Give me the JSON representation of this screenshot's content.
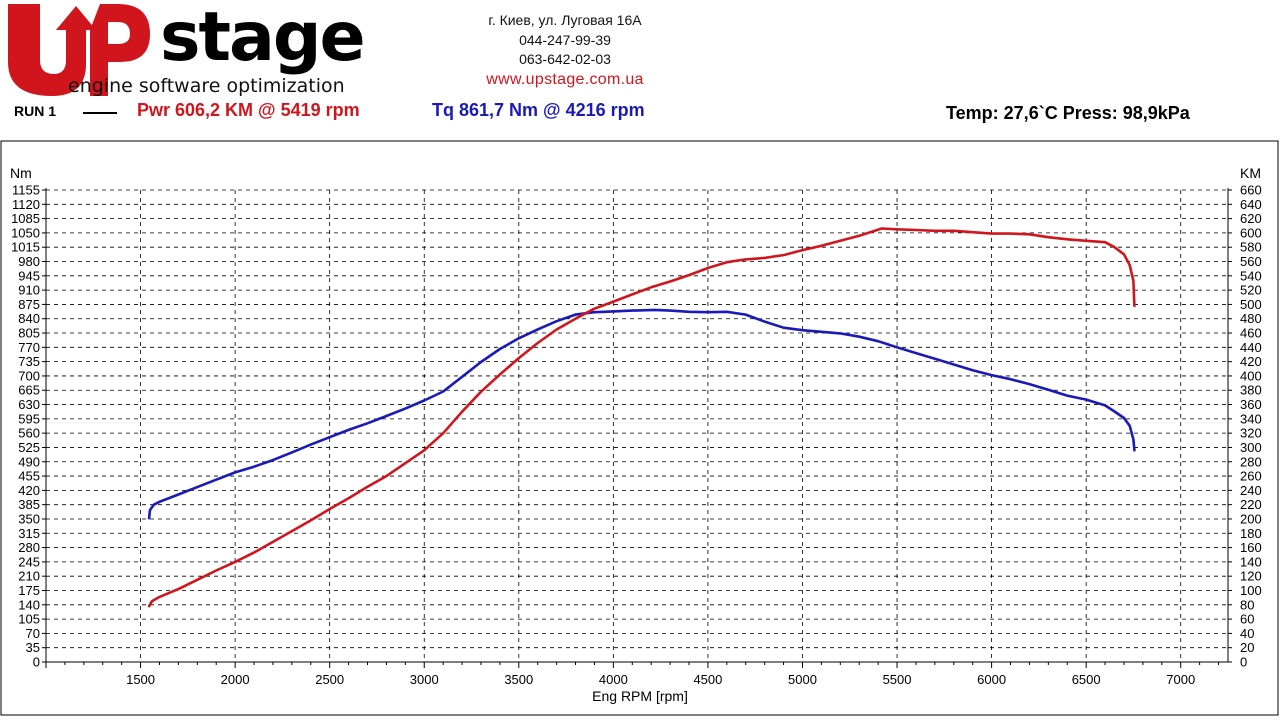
{
  "header": {
    "logo_text": "Upstage",
    "logo_tagline": "engine software optimization",
    "address": "г. Киев, ул. Луговая 16А",
    "phone1": "044-247-99-39",
    "phone2": "063-642-02-03",
    "website": "www.upstage.com.ua",
    "run_label": "RUN 1",
    "power_summary": "Pwr  606,2 KM @ 5419 rpm",
    "torque_summary": "Tq 861,7 Nm @ 4216 rpm",
    "conditions": "Temp: 27,6`C    Press: 98,9kPa"
  },
  "colors": {
    "brand_red": "#d0161c",
    "power": "#d0161c",
    "torque": "#1a1ab8",
    "grid": "#000000"
  },
  "chart_data": {
    "type": "line",
    "title": "",
    "xlabel": "Eng RPM [rpm]",
    "ylabel_left": "Nm",
    "ylabel_right": "KM",
    "xlim": [
      1000,
      7250
    ],
    "ylim_left": [
      0,
      1155
    ],
    "ylim_right": [
      0,
      660
    ],
    "x_ticks": [
      1500,
      2000,
      2500,
      3000,
      3500,
      4000,
      4500,
      5000,
      5500,
      6000,
      6500,
      7000
    ],
    "y_ticks_left": [
      0,
      35,
      70,
      105,
      140,
      175,
      210,
      245,
      280,
      315,
      350,
      385,
      420,
      455,
      490,
      525,
      560,
      595,
      630,
      665,
      700,
      735,
      770,
      805,
      840,
      875,
      910,
      945,
      980,
      1015,
      1050,
      1085,
      1120,
      1155
    ],
    "y_ticks_right": [
      0,
      20,
      40,
      60,
      80,
      100,
      120,
      140,
      160,
      180,
      200,
      220,
      240,
      260,
      280,
      300,
      320,
      340,
      360,
      380,
      400,
      420,
      440,
      460,
      480,
      500,
      520,
      540,
      560,
      580,
      600,
      620,
      640,
      660
    ],
    "grid": true,
    "series": [
      {
        "name": "Tq",
        "axis": "left",
        "color": "#1a1ab8",
        "points": [
          [
            1545,
            352
          ],
          [
            1550,
            372
          ],
          [
            1570,
            385
          ],
          [
            1600,
            392
          ],
          [
            1700,
            410
          ],
          [
            1800,
            428
          ],
          [
            1900,
            446
          ],
          [
            2000,
            464
          ],
          [
            2100,
            478
          ],
          [
            2200,
            494
          ],
          [
            2300,
            513
          ],
          [
            2400,
            532
          ],
          [
            2500,
            550
          ],
          [
            2600,
            568
          ],
          [
            2700,
            584
          ],
          [
            2800,
            602
          ],
          [
            2900,
            620
          ],
          [
            3000,
            640
          ],
          [
            3100,
            662
          ],
          [
            3200,
            698
          ],
          [
            3300,
            734
          ],
          [
            3400,
            766
          ],
          [
            3500,
            792
          ],
          [
            3600,
            814
          ],
          [
            3700,
            834
          ],
          [
            3800,
            850
          ],
          [
            3900,
            856
          ],
          [
            4000,
            858
          ],
          [
            4100,
            860
          ],
          [
            4216,
            861.7
          ],
          [
            4300,
            860
          ],
          [
            4400,
            857
          ],
          [
            4500,
            856
          ],
          [
            4600,
            857
          ],
          [
            4700,
            850
          ],
          [
            4800,
            833
          ],
          [
            4900,
            818
          ],
          [
            5000,
            812
          ],
          [
            5100,
            808
          ],
          [
            5200,
            804
          ],
          [
            5300,
            796
          ],
          [
            5400,
            785
          ],
          [
            5500,
            770
          ],
          [
            5600,
            756
          ],
          [
            5700,
            742
          ],
          [
            5800,
            728
          ],
          [
            5900,
            714
          ],
          [
            6000,
            702
          ],
          [
            6100,
            692
          ],
          [
            6200,
            680
          ],
          [
            6300,
            666
          ],
          [
            6400,
            652
          ],
          [
            6500,
            642
          ],
          [
            6600,
            628
          ],
          [
            6650,
            613
          ],
          [
            6700,
            597
          ],
          [
            6730,
            578
          ],
          [
            6750,
            545
          ],
          [
            6755,
            518
          ]
        ]
      },
      {
        "name": "Pwr",
        "axis": "right",
        "color": "#d0161c",
        "points": [
          [
            1545,
            78
          ],
          [
            1560,
            85
          ],
          [
            1600,
            91
          ],
          [
            1700,
            102
          ],
          [
            1800,
            115
          ],
          [
            1900,
            128
          ],
          [
            2000,
            140
          ],
          [
            2100,
            153
          ],
          [
            2200,
            168
          ],
          [
            2300,
            183
          ],
          [
            2400,
            198
          ],
          [
            2500,
            214
          ],
          [
            2600,
            229
          ],
          [
            2700,
            245
          ],
          [
            2800,
            260
          ],
          [
            2900,
            278
          ],
          [
            3000,
            296
          ],
          [
            3100,
            320
          ],
          [
            3200,
            350
          ],
          [
            3300,
            378
          ],
          [
            3400,
            402
          ],
          [
            3500,
            425
          ],
          [
            3600,
            446
          ],
          [
            3700,
            465
          ],
          [
            3800,
            480
          ],
          [
            3900,
            494
          ],
          [
            4000,
            504
          ],
          [
            4100,
            514
          ],
          [
            4200,
            524
          ],
          [
            4300,
            532
          ],
          [
            4400,
            541
          ],
          [
            4500,
            551
          ],
          [
            4600,
            559
          ],
          [
            4700,
            563
          ],
          [
            4800,
            565
          ],
          [
            4900,
            569
          ],
          [
            5000,
            576
          ],
          [
            5100,
            582
          ],
          [
            5200,
            589
          ],
          [
            5300,
            596
          ],
          [
            5419,
            606.2
          ],
          [
            5500,
            605
          ],
          [
            5600,
            604
          ],
          [
            5700,
            603
          ],
          [
            5800,
            603
          ],
          [
            5900,
            601
          ],
          [
            6000,
            599
          ],
          [
            6100,
            599
          ],
          [
            6200,
            598
          ],
          [
            6300,
            594
          ],
          [
            6400,
            591
          ],
          [
            6500,
            589
          ],
          [
            6600,
            587
          ],
          [
            6650,
            580
          ],
          [
            6700,
            570
          ],
          [
            6730,
            555
          ],
          [
            6750,
            533
          ],
          [
            6755,
            498
          ]
        ]
      }
    ]
  }
}
